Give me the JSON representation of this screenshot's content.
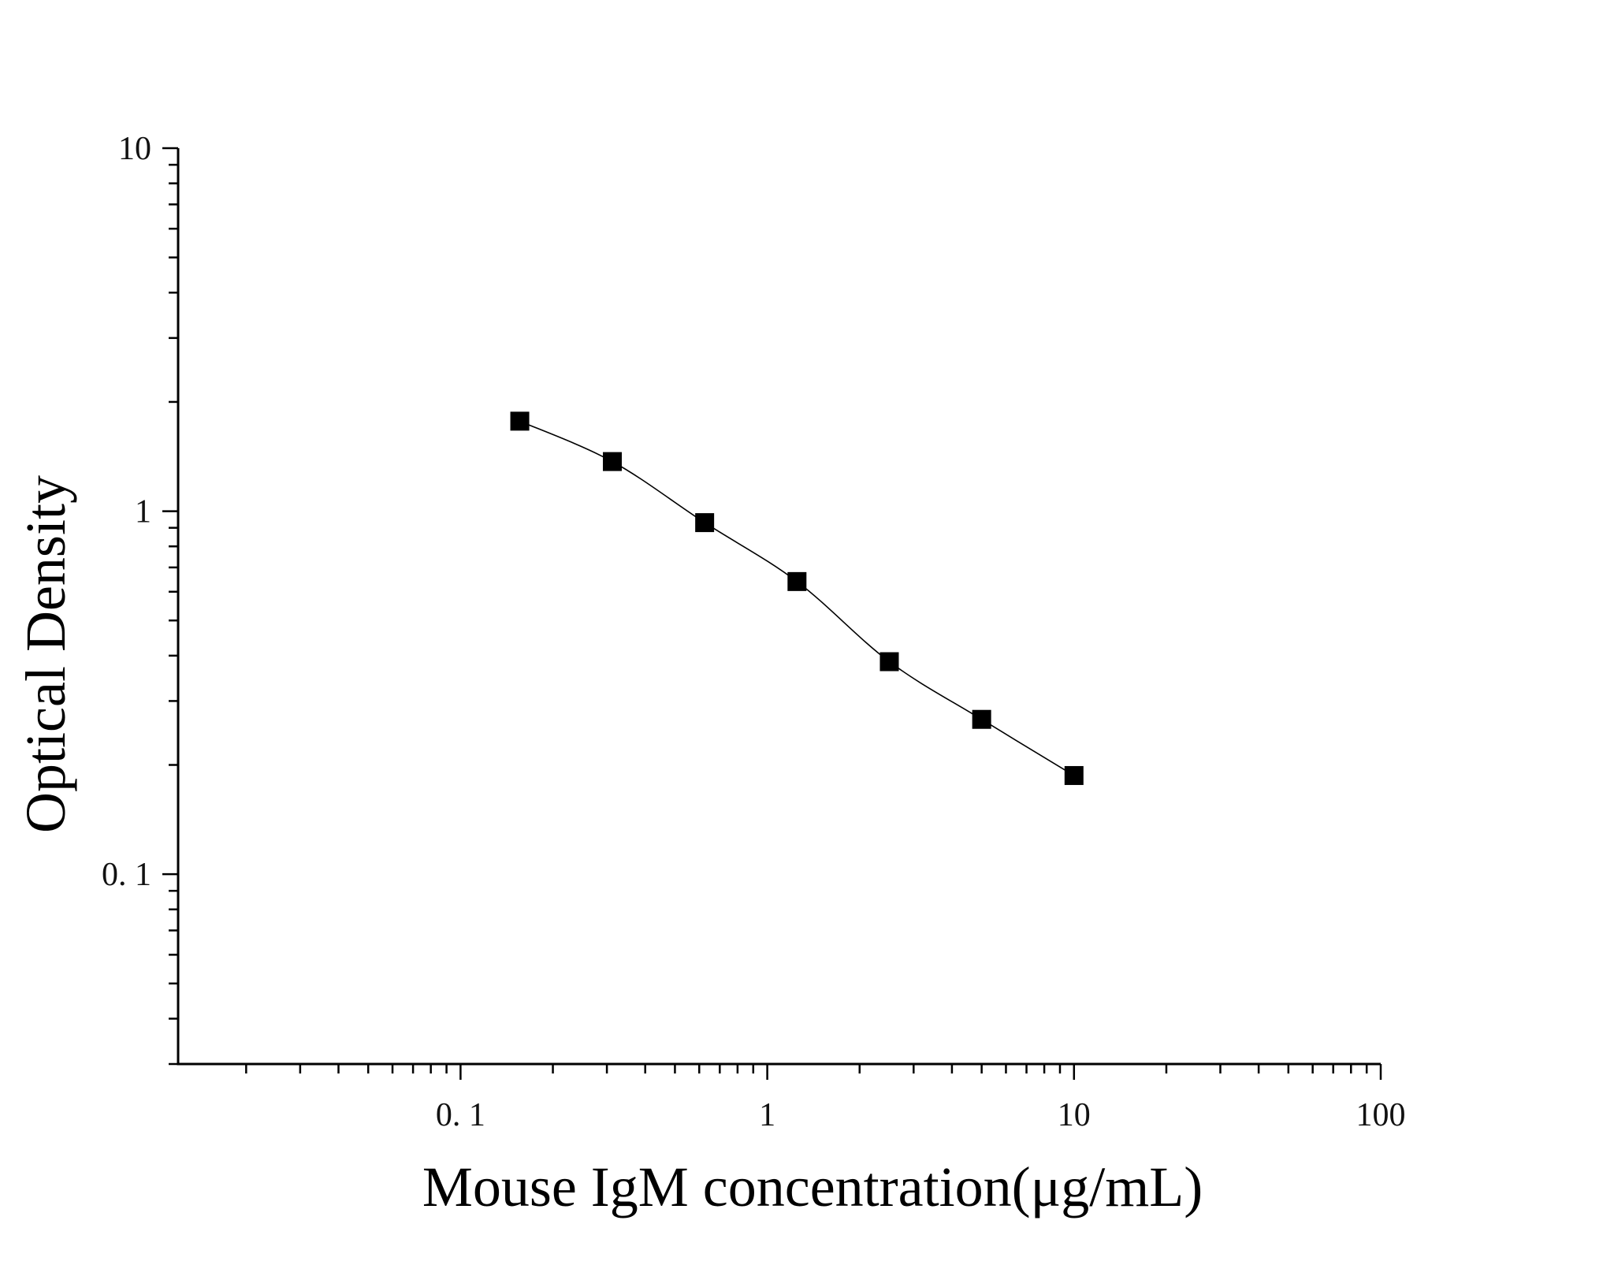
{
  "chart_data": {
    "type": "scatter",
    "title": "",
    "xlabel": "Mouse IgM concentration(μg/mL)",
    "ylabel": "Optical Density",
    "x_scale": "log",
    "y_scale": "log",
    "xlim": [
      0.012,
      100
    ],
    "ylim": [
      0.03,
      10
    ],
    "x_ticks": [
      {
        "value": 0.1,
        "label": "0. 1"
      },
      {
        "value": 1,
        "label": "1"
      },
      {
        "value": 10,
        "label": "10"
      },
      {
        "value": 100,
        "label": "100"
      }
    ],
    "y_ticks": [
      {
        "value": 0.1,
        "label": "0. 1"
      },
      {
        "value": 1,
        "label": "1"
      },
      {
        "value": 10,
        "label": "10"
      }
    ],
    "grid": false,
    "series": [
      {
        "marker": "square",
        "color": "#000000",
        "x": [
          0.156,
          0.3125,
          0.625,
          1.25,
          2.5,
          5,
          10
        ],
        "y": [
          1.77,
          1.37,
          0.93,
          0.64,
          0.385,
          0.267,
          0.187
        ],
        "fit": "4PL curve"
      }
    ]
  }
}
